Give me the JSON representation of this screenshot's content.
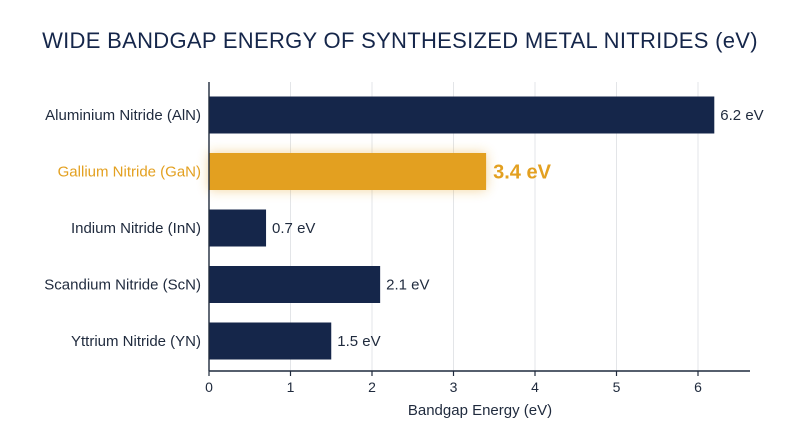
{
  "title": "WIDE BANDGAP ENERGY OF SYNTHESIZED METAL NITRIDES (eV)",
  "colors": {
    "bar": "#15264a",
    "highlight": "#e3a020",
    "grid": "#e3e5e8",
    "axis": "#1f2a3d",
    "text": "#1f2a3d"
  },
  "chart_data": {
    "type": "bar",
    "orientation": "horizontal",
    "title": "WIDE BANDGAP ENERGY OF SYNTHESIZED METAL NITRIDES (eV)",
    "xlabel": "Bandgap Energy (eV)",
    "ylabel": "",
    "xlim": [
      0,
      6.6
    ],
    "xticks": [
      "0",
      "1",
      "2",
      "3",
      "4",
      "5",
      "6"
    ],
    "grid": "vertical",
    "categories": [
      "Aluminium Nitride (AlN)",
      "Gallium Nitride (GaN)",
      "Indium Nitride (InN)",
      "Scandium Nitride (ScN)",
      "Yttrium Nitride (YN)"
    ],
    "values": [
      6.2,
      3.4,
      0.7,
      2.1,
      1.5
    ],
    "value_labels": [
      "6.2 eV",
      "3.4 eV",
      "0.7 eV",
      "2.1 eV",
      "1.5 eV"
    ],
    "highlighted": [
      false,
      true,
      false,
      false,
      false
    ]
  }
}
